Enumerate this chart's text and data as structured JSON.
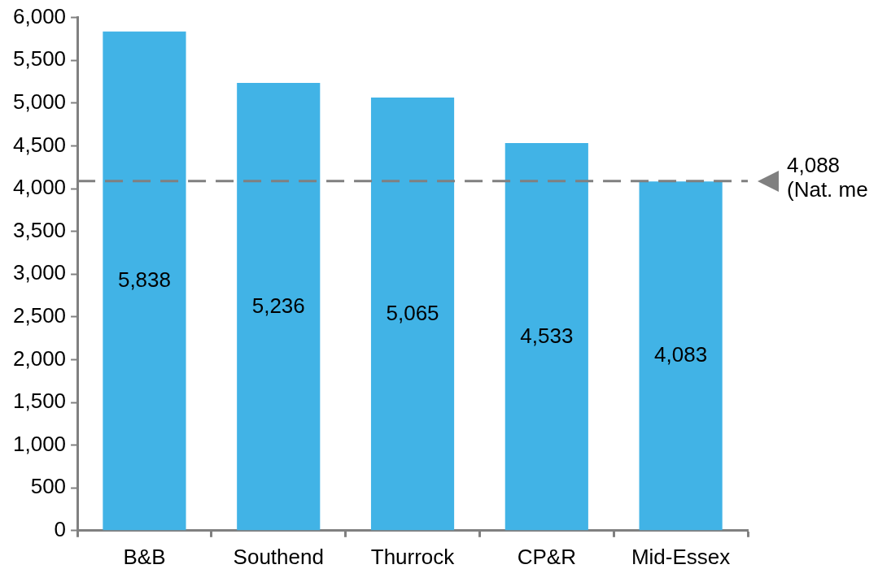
{
  "chart_data": {
    "type": "bar",
    "categories": [
      "B&B",
      "Southend",
      "Thurrock",
      "CP&R",
      "Mid-Essex"
    ],
    "values": [
      5838,
      5236,
      5065,
      4533,
      4083
    ],
    "color": "#41b3e6",
    "value_labels": [
      "5,838",
      "5,236",
      "5,065",
      "4,533",
      "4,083"
    ],
    "ylim": [
      0,
      6000
    ],
    "yticks": [
      0,
      500,
      {
        "value": 1000,
        "label": "1,000"
      },
      {
        "value": 1500,
        "label": "1,500"
      },
      {
        "value": 2000,
        "label": "2,000"
      },
      {
        "value": 2500,
        "label": "2,500"
      },
      {
        "value": 3000,
        "label": "3,000"
      },
      {
        "value": 3500,
        "label": "3,500"
      },
      {
        "value": 4000,
        "label": "4,000"
      },
      {
        "value": 4500,
        "label": "4,500"
      },
      {
        "value": 5000,
        "label": "5,000"
      },
      {
        "value": 5500,
        "label": "5,500"
      },
      {
        "value": 6000,
        "label": "6,000"
      }
    ],
    "grid": false,
    "legend": false,
    "ref_lines": [
      {
        "axis": "y",
        "value": 4088,
        "label": "4,088\n(Nat. me",
        "color": "#808080",
        "line_style": "dashed"
      }
    ]
  }
}
